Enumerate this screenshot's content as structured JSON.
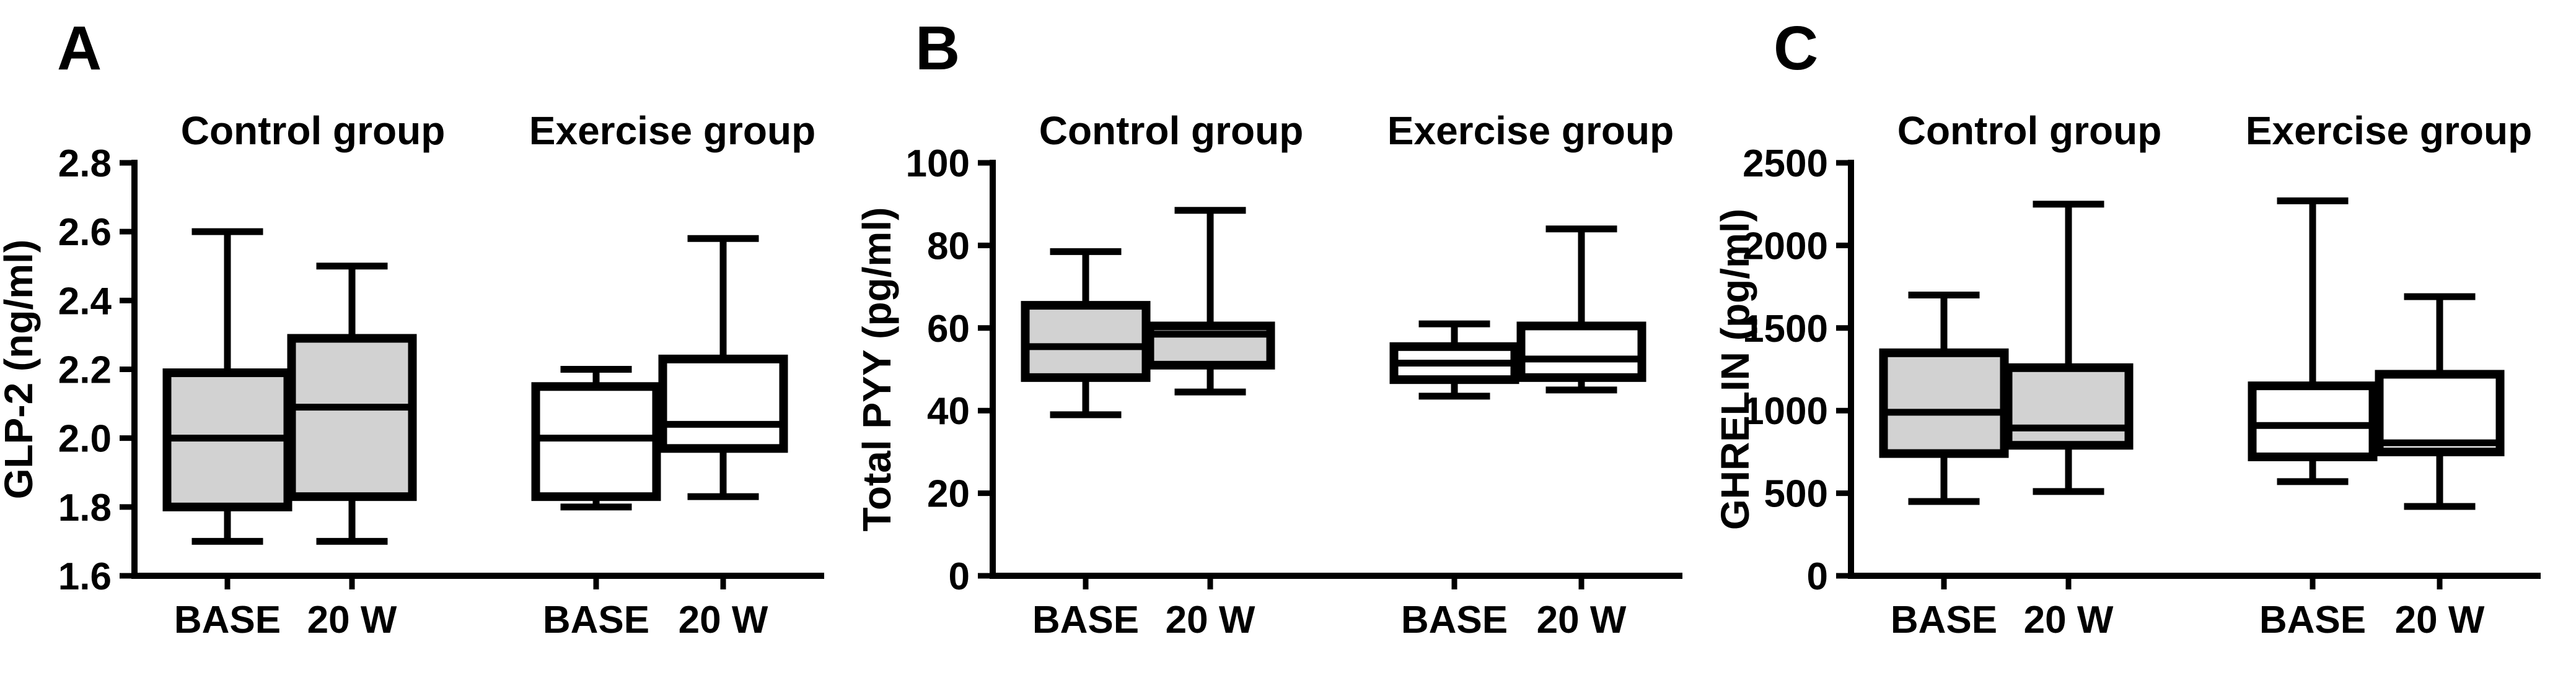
{
  "figure": {
    "background": "#ffffff",
    "x_tick_labels": [
      "BASE",
      "20 W"
    ],
    "group_titles": [
      "Control group",
      "Exercise group"
    ]
  },
  "colors": {
    "stroke": "#000000",
    "control_fill": "#d2d2d2",
    "exercise_fill": "#ffffff"
  },
  "chart_data": [
    {
      "type": "boxplot",
      "panel_label": "A",
      "ylabel": "GLP-2 (ng/ml)",
      "ylim": [
        1.6,
        2.8
      ],
      "yticks": [
        "1.6",
        "1.8",
        "2.0",
        "2.2",
        "2.4",
        "2.6",
        "2.8"
      ],
      "grid": false,
      "groups": [
        {
          "title": "Control group",
          "fill_key": "control_fill",
          "boxes": [
            {
              "x_label": "BASE",
              "min": 1.7,
              "q1": 1.8,
              "median": 2.0,
              "q3": 2.19,
              "max": 2.6
            },
            {
              "x_label": "20 W",
              "min": 1.7,
              "q1": 1.83,
              "median": 2.09,
              "q3": 2.29,
              "max": 2.5
            }
          ]
        },
        {
          "title": "Exercise group",
          "fill_key": "exercise_fill",
          "boxes": [
            {
              "x_label": "BASE",
              "min": 1.8,
              "q1": 1.83,
              "median": 2.0,
              "q3": 2.15,
              "max": 2.2
            },
            {
              "x_label": "20 W",
              "min": 1.83,
              "q1": 1.97,
              "median": 2.04,
              "q3": 2.23,
              "max": 2.58
            }
          ]
        }
      ]
    },
    {
      "type": "boxplot",
      "panel_label": "B",
      "ylabel": "Total PYY (pg/ml)",
      "ylim": [
        0,
        100
      ],
      "yticks": [
        "0",
        "20",
        "40",
        "60",
        "80",
        "100"
      ],
      "grid": false,
      "groups": [
        {
          "title": "Control group",
          "fill_key": "control_fill",
          "boxes": [
            {
              "x_label": "BASE",
              "min": 39,
              "q1": 48,
              "median": 55.5,
              "q3": 65.5,
              "max": 78.5
            },
            {
              "x_label": "20 W",
              "min": 44.5,
              "q1": 51,
              "median": 58.5,
              "q3": 60.5,
              "max": 88.5
            }
          ]
        },
        {
          "title": "Exercise group",
          "fill_key": "exercise_fill",
          "boxes": [
            {
              "x_label": "BASE",
              "min": 43.5,
              "q1": 47.5,
              "median": 51.5,
              "q3": 55.5,
              "max": 61
            },
            {
              "x_label": "20 W",
              "min": 45,
              "q1": 48,
              "median": 52.5,
              "q3": 60.5,
              "max": 84
            }
          ]
        }
      ]
    },
    {
      "type": "boxplot",
      "panel_label": "C",
      "ylabel": "GHRELIN (pg/ml)",
      "ylim": [
        0,
        2500
      ],
      "yticks": [
        "0",
        "500",
        "1000",
        "1500",
        "2000",
        "2500"
      ],
      "grid": false,
      "groups": [
        {
          "title": "Control group",
          "fill_key": "control_fill",
          "boxes": [
            {
              "x_label": "BASE",
              "min": 450,
              "q1": 740,
              "median": 990,
              "q3": 1350,
              "max": 1700
            },
            {
              "x_label": "20 W",
              "min": 510,
              "q1": 790,
              "median": 895,
              "q3": 1260,
              "max": 2250
            }
          ]
        },
        {
          "title": "Exercise group",
          "fill_key": "exercise_fill",
          "boxes": [
            {
              "x_label": "BASE",
              "min": 570,
              "q1": 720,
              "median": 910,
              "q3": 1150,
              "max": 2270
            },
            {
              "x_label": "20 W",
              "min": 420,
              "q1": 750,
              "median": 805,
              "q3": 1220,
              "max": 1690
            }
          ]
        }
      ]
    }
  ]
}
